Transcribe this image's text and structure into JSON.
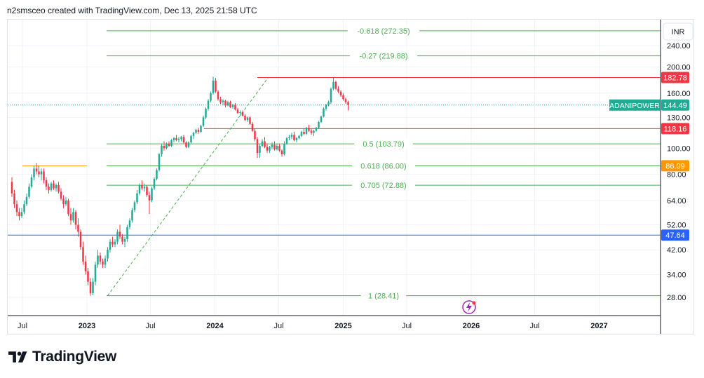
{
  "header": {
    "attribution": "n2smsceo created with TradingView.com, Dec 13, 2025 21:58 UTC"
  },
  "brand": {
    "name": "TradingView"
  },
  "colors": {
    "up": "#22ab94",
    "down": "#f23645",
    "fib": "#4caf50",
    "resistance": "#f23645",
    "support_line": "#2962ff",
    "old_high": "#ff9800",
    "text": "#131722",
    "axis": "#6a6d78"
  },
  "chart_data": {
    "type": "candlestick",
    "symbol": "ADANIPOWER",
    "currency": "INR",
    "scale": "log",
    "y_ticks": [
      240.0,
      200.0,
      160.0,
      130.0,
      100.0,
      80.0,
      64.0,
      52.0,
      42.0,
      34.0,
      28.0
    ],
    "x_ticks": [
      "Jul",
      "2023",
      "Jul",
      "2024",
      "Jul",
      "2025",
      "Jul",
      "2026",
      "Jul",
      "2027"
    ],
    "price_labels": [
      {
        "value": "182.78",
        "color": "#f23645"
      },
      {
        "value": "144.49",
        "color": "#22ab94",
        "name": "ADANIPOWER"
      },
      {
        "value": "118.16",
        "color": "#f23645"
      },
      {
        "value": "86.09",
        "color": "#ff9800"
      },
      {
        "value": "47.64",
        "color": "#2962ff"
      }
    ],
    "fib_levels": [
      {
        "label": "-0.618 (272.35)",
        "price": 272.35
      },
      {
        "label": "-0.27 (219.88)",
        "price": 219.88
      },
      {
        "label": "0.5 (103.79)",
        "price": 103.79
      },
      {
        "label": "0.618 (86.00)",
        "price": 86.0
      },
      {
        "label": "0.705 (72.88)",
        "price": 72.88
      },
      {
        "label": "1 (28.41)",
        "price": 28.41
      }
    ],
    "horizontal_lines": [
      {
        "price": 182.78,
        "color": "#f23645",
        "from": "2024-05",
        "to": "end"
      },
      {
        "price": 118.16,
        "color": "#f23645",
        "from": "2023-12",
        "to": "end"
      },
      {
        "price": 86.09,
        "color": "#ff9800",
        "from": "2022-07",
        "to": "2023-01"
      },
      {
        "price": 47.64,
        "color": "#2962ff",
        "from": "start",
        "to": "end"
      }
    ],
    "trend_line": {
      "from": {
        "date": "2023-03",
        "price": 28.41
      },
      "to": {
        "date": "2024-06",
        "price": 182.78
      }
    },
    "candles": [
      {
        "t": "2022-06-01",
        "o": 75,
        "h": 78,
        "l": 66,
        "c": 68
      },
      {
        "t": "2022-06-08",
        "o": 68,
        "h": 70,
        "l": 60,
        "c": 62
      },
      {
        "t": "2022-06-15",
        "o": 62,
        "h": 64,
        "l": 56,
        "c": 58
      },
      {
        "t": "2022-06-22",
        "o": 58,
        "h": 60,
        "l": 54,
        "c": 56
      },
      {
        "t": "2022-06-29",
        "o": 56,
        "h": 60,
        "l": 55,
        "c": 58
      },
      {
        "t": "2022-07-06",
        "o": 58,
        "h": 64,
        "l": 57,
        "c": 62
      },
      {
        "t": "2022-07-13",
        "o": 62,
        "h": 68,
        "l": 61,
        "c": 66
      },
      {
        "t": "2022-07-20",
        "o": 66,
        "h": 74,
        "l": 65,
        "c": 72
      },
      {
        "t": "2022-07-27",
        "o": 72,
        "h": 80,
        "l": 71,
        "c": 78
      },
      {
        "t": "2022-08-03",
        "o": 78,
        "h": 86,
        "l": 76,
        "c": 84
      },
      {
        "t": "2022-08-10",
        "o": 84,
        "h": 88,
        "l": 80,
        "c": 82
      },
      {
        "t": "2022-08-17",
        "o": 82,
        "h": 86,
        "l": 78,
        "c": 80
      },
      {
        "t": "2022-08-24",
        "o": 80,
        "h": 84,
        "l": 76,
        "c": 82
      },
      {
        "t": "2022-08-31",
        "o": 82,
        "h": 84,
        "l": 74,
        "c": 76
      },
      {
        "t": "2022-09-07",
        "o": 76,
        "h": 78,
        "l": 70,
        "c": 72
      },
      {
        "t": "2022-09-14",
        "o": 72,
        "h": 74,
        "l": 68,
        "c": 70
      },
      {
        "t": "2022-09-21",
        "o": 70,
        "h": 75,
        "l": 69,
        "c": 74
      },
      {
        "t": "2022-09-28",
        "o": 74,
        "h": 76,
        "l": 70,
        "c": 71
      },
      {
        "t": "2022-10-05",
        "o": 71,
        "h": 74,
        "l": 69,
        "c": 73
      },
      {
        "t": "2022-10-12",
        "o": 73,
        "h": 75,
        "l": 68,
        "c": 69
      },
      {
        "t": "2022-10-19",
        "o": 69,
        "h": 71,
        "l": 64,
        "c": 65
      },
      {
        "t": "2022-10-26",
        "o": 65,
        "h": 67,
        "l": 60,
        "c": 62
      },
      {
        "t": "2022-11-02",
        "o": 62,
        "h": 66,
        "l": 61,
        "c": 64
      },
      {
        "t": "2022-11-09",
        "o": 64,
        "h": 65,
        "l": 56,
        "c": 57
      },
      {
        "t": "2022-11-16",
        "o": 57,
        "h": 60,
        "l": 52,
        "c": 54
      },
      {
        "t": "2022-11-23",
        "o": 54,
        "h": 60,
        "l": 53,
        "c": 58
      },
      {
        "t": "2022-11-30",
        "o": 58,
        "h": 59,
        "l": 50,
        "c": 52
      },
      {
        "t": "2022-12-07",
        "o": 52,
        "h": 55,
        "l": 47,
        "c": 49
      },
      {
        "t": "2022-12-14",
        "o": 49,
        "h": 50,
        "l": 42,
        "c": 43
      },
      {
        "t": "2022-12-21",
        "o": 43,
        "h": 45,
        "l": 37,
        "c": 38
      },
      {
        "t": "2022-12-28",
        "o": 38,
        "h": 40,
        "l": 34,
        "c": 35
      },
      {
        "t": "2023-01-04",
        "o": 35,
        "h": 36,
        "l": 31,
        "c": 32
      },
      {
        "t": "2023-01-11",
        "o": 32,
        "h": 33,
        "l": 28.41,
        "c": 29
      },
      {
        "t": "2023-01-18",
        "o": 29,
        "h": 33,
        "l": 28.5,
        "c": 32
      },
      {
        "t": "2023-01-25",
        "o": 32,
        "h": 38,
        "l": 31,
        "c": 37
      },
      {
        "t": "2023-02-01",
        "o": 37,
        "h": 42,
        "l": 36,
        "c": 40
      },
      {
        "t": "2023-02-08",
        "o": 40,
        "h": 41,
        "l": 37,
        "c": 38
      },
      {
        "t": "2023-02-15",
        "o": 38,
        "h": 39,
        "l": 36,
        "c": 37
      },
      {
        "t": "2023-02-22",
        "o": 37,
        "h": 40,
        "l": 36,
        "c": 39
      },
      {
        "t": "2023-03-01",
        "o": 39,
        "h": 43,
        "l": 38,
        "c": 42
      },
      {
        "t": "2023-03-08",
        "o": 42,
        "h": 46,
        "l": 41,
        "c": 45
      },
      {
        "t": "2023-03-15",
        "o": 45,
        "h": 47,
        "l": 43,
        "c": 44
      },
      {
        "t": "2023-03-22",
        "o": 44,
        "h": 46,
        "l": 43,
        "c": 45
      },
      {
        "t": "2023-03-29",
        "o": 45,
        "h": 50,
        "l": 44,
        "c": 49
      },
      {
        "t": "2023-04-05",
        "o": 49,
        "h": 52,
        "l": 46,
        "c": 47
      },
      {
        "t": "2023-04-12",
        "o": 47,
        "h": 48,
        "l": 44,
        "c": 45
      },
      {
        "t": "2023-04-19",
        "o": 45,
        "h": 47,
        "l": 43,
        "c": 46
      },
      {
        "t": "2023-04-26",
        "o": 46,
        "h": 52,
        "l": 45,
        "c": 51
      },
      {
        "t": "2023-05-03",
        "o": 51,
        "h": 55,
        "l": 50,
        "c": 54
      },
      {
        "t": "2023-05-10",
        "o": 54,
        "h": 60,
        "l": 53,
        "c": 59
      },
      {
        "t": "2023-05-17",
        "o": 59,
        "h": 64,
        "l": 58,
        "c": 63
      },
      {
        "t": "2023-05-24",
        "o": 63,
        "h": 70,
        "l": 62,
        "c": 68
      },
      {
        "t": "2023-05-31",
        "o": 68,
        "h": 74,
        "l": 67,
        "c": 73
      },
      {
        "t": "2023-06-07",
        "o": 73,
        "h": 76,
        "l": 70,
        "c": 71
      },
      {
        "t": "2023-06-14",
        "o": 71,
        "h": 74,
        "l": 69,
        "c": 72
      },
      {
        "t": "2023-06-21",
        "o": 72,
        "h": 73,
        "l": 66,
        "c": 67
      },
      {
        "t": "2023-06-28",
        "o": 67,
        "h": 69,
        "l": 57,
        "c": 64
      },
      {
        "t": "2023-07-05",
        "o": 64,
        "h": 72,
        "l": 63,
        "c": 71
      },
      {
        "t": "2023-07-12",
        "o": 71,
        "h": 78,
        "l": 70,
        "c": 77
      },
      {
        "t": "2023-07-19",
        "o": 77,
        "h": 84,
        "l": 76,
        "c": 83
      },
      {
        "t": "2023-07-26",
        "o": 83,
        "h": 96,
        "l": 82,
        "c": 95
      },
      {
        "t": "2023-08-02",
        "o": 95,
        "h": 104,
        "l": 93,
        "c": 102
      },
      {
        "t": "2023-08-09",
        "o": 102,
        "h": 106,
        "l": 98,
        "c": 100
      },
      {
        "t": "2023-08-16",
        "o": 100,
        "h": 105,
        "l": 99,
        "c": 104
      },
      {
        "t": "2023-08-23",
        "o": 104,
        "h": 106,
        "l": 101,
        "c": 102
      },
      {
        "t": "2023-08-30",
        "o": 102,
        "h": 108,
        "l": 101,
        "c": 107
      },
      {
        "t": "2023-09-06",
        "o": 107,
        "h": 110,
        "l": 105,
        "c": 109
      },
      {
        "t": "2023-09-13",
        "o": 109,
        "h": 112,
        "l": 106,
        "c": 107
      },
      {
        "t": "2023-09-20",
        "o": 107,
        "h": 110,
        "l": 105,
        "c": 108
      },
      {
        "t": "2023-09-27",
        "o": 108,
        "h": 111,
        "l": 106,
        "c": 110
      },
      {
        "t": "2023-10-04",
        "o": 110,
        "h": 112,
        "l": 104,
        "c": 105
      },
      {
        "t": "2023-10-11",
        "o": 105,
        "h": 106,
        "l": 100,
        "c": 101
      },
      {
        "t": "2023-10-18",
        "o": 101,
        "h": 106,
        "l": 100,
        "c": 105
      },
      {
        "t": "2023-10-25",
        "o": 105,
        "h": 112,
        "l": 104,
        "c": 111
      },
      {
        "t": "2023-11-01",
        "o": 111,
        "h": 115,
        "l": 108,
        "c": 114
      },
      {
        "t": "2023-11-08",
        "o": 114,
        "h": 118,
        "l": 113,
        "c": 117
      },
      {
        "t": "2023-11-15",
        "o": 117,
        "h": 119,
        "l": 113,
        "c": 115
      },
      {
        "t": "2023-11-22",
        "o": 115,
        "h": 122,
        "l": 114,
        "c": 121
      },
      {
        "t": "2023-11-29",
        "o": 121,
        "h": 132,
        "l": 120,
        "c": 130
      },
      {
        "t": "2023-12-06",
        "o": 130,
        "h": 142,
        "l": 128,
        "c": 140
      },
      {
        "t": "2023-12-13",
        "o": 140,
        "h": 152,
        "l": 138,
        "c": 150
      },
      {
        "t": "2023-12-20",
        "o": 150,
        "h": 162,
        "l": 148,
        "c": 160
      },
      {
        "t": "2023-12-27",
        "o": 160,
        "h": 184,
        "l": 158,
        "c": 178
      },
      {
        "t": "2024-01-03",
        "o": 178,
        "h": 182,
        "l": 160,
        "c": 162
      },
      {
        "t": "2024-01-10",
        "o": 162,
        "h": 164,
        "l": 150,
        "c": 152
      },
      {
        "t": "2024-01-17",
        "o": 152,
        "h": 155,
        "l": 146,
        "c": 148
      },
      {
        "t": "2024-01-24",
        "o": 148,
        "h": 152,
        "l": 144,
        "c": 150
      },
      {
        "t": "2024-01-31",
        "o": 150,
        "h": 151,
        "l": 142,
        "c": 144
      },
      {
        "t": "2024-02-07",
        "o": 144,
        "h": 150,
        "l": 143,
        "c": 148
      },
      {
        "t": "2024-02-14",
        "o": 148,
        "h": 150,
        "l": 141,
        "c": 142
      },
      {
        "t": "2024-02-21",
        "o": 142,
        "h": 146,
        "l": 140,
        "c": 145
      },
      {
        "t": "2024-02-28",
        "o": 145,
        "h": 147,
        "l": 138,
        "c": 139
      },
      {
        "t": "2024-03-06",
        "o": 139,
        "h": 141,
        "l": 134,
        "c": 135
      },
      {
        "t": "2024-03-13",
        "o": 135,
        "h": 138,
        "l": 132,
        "c": 136
      },
      {
        "t": "2024-03-20",
        "o": 136,
        "h": 138,
        "l": 131,
        "c": 132
      },
      {
        "t": "2024-03-27",
        "o": 132,
        "h": 134,
        "l": 126,
        "c": 127
      },
      {
        "t": "2024-04-03",
        "o": 127,
        "h": 131,
        "l": 125,
        "c": 130
      },
      {
        "t": "2024-04-10",
        "o": 130,
        "h": 131,
        "l": 122,
        "c": 123
      },
      {
        "t": "2024-04-17",
        "o": 123,
        "h": 125,
        "l": 115,
        "c": 116
      },
      {
        "t": "2024-04-24",
        "o": 116,
        "h": 118,
        "l": 106,
        "c": 108
      },
      {
        "t": "2024-05-01",
        "o": 108,
        "h": 110,
        "l": 92,
        "c": 96
      },
      {
        "t": "2024-05-08",
        "o": 96,
        "h": 104,
        "l": 92,
        "c": 102
      },
      {
        "t": "2024-05-15",
        "o": 102,
        "h": 108,
        "l": 101,
        "c": 106
      },
      {
        "t": "2024-05-22",
        "o": 106,
        "h": 110,
        "l": 100,
        "c": 101
      },
      {
        "t": "2024-05-29",
        "o": 101,
        "h": 104,
        "l": 96,
        "c": 98
      },
      {
        "t": "2024-06-05",
        "o": 98,
        "h": 102,
        "l": 96,
        "c": 101
      },
      {
        "t": "2024-06-12",
        "o": 101,
        "h": 105,
        "l": 99,
        "c": 103
      },
      {
        "t": "2024-06-19",
        "o": 103,
        "h": 106,
        "l": 98,
        "c": 99
      },
      {
        "t": "2024-06-26",
        "o": 99,
        "h": 104,
        "l": 98,
        "c": 102
      },
      {
        "t": "2024-07-03",
        "o": 102,
        "h": 104,
        "l": 97,
        "c": 98
      },
      {
        "t": "2024-07-10",
        "o": 98,
        "h": 99,
        "l": 93,
        "c": 95
      },
      {
        "t": "2024-07-17",
        "o": 95,
        "h": 106,
        "l": 94,
        "c": 104
      },
      {
        "t": "2024-07-24",
        "o": 104,
        "h": 110,
        "l": 103,
        "c": 109
      },
      {
        "t": "2024-07-31",
        "o": 109,
        "h": 112,
        "l": 107,
        "c": 110
      },
      {
        "t": "2024-08-07",
        "o": 110,
        "h": 114,
        "l": 108,
        "c": 112
      },
      {
        "t": "2024-08-14",
        "o": 112,
        "h": 115,
        "l": 106,
        "c": 107
      },
      {
        "t": "2024-08-21",
        "o": 107,
        "h": 110,
        "l": 105,
        "c": 109
      },
      {
        "t": "2024-08-28",
        "o": 109,
        "h": 112,
        "l": 108,
        "c": 111
      },
      {
        "t": "2024-09-04",
        "o": 111,
        "h": 116,
        "l": 110,
        "c": 115
      },
      {
        "t": "2024-09-11",
        "o": 115,
        "h": 118,
        "l": 112,
        "c": 113
      },
      {
        "t": "2024-09-18",
        "o": 113,
        "h": 120,
        "l": 112,
        "c": 119
      },
      {
        "t": "2024-09-25",
        "o": 119,
        "h": 122,
        "l": 115,
        "c": 116
      },
      {
        "t": "2024-10-02",
        "o": 116,
        "h": 118,
        "l": 112,
        "c": 114
      },
      {
        "t": "2024-10-09",
        "o": 114,
        "h": 117,
        "l": 111,
        "c": 116
      },
      {
        "t": "2024-10-16",
        "o": 116,
        "h": 120,
        "l": 115,
        "c": 119
      },
      {
        "t": "2024-10-23",
        "o": 119,
        "h": 126,
        "l": 118,
        "c": 125
      },
      {
        "t": "2024-10-30",
        "o": 125,
        "h": 132,
        "l": 124,
        "c": 131
      },
      {
        "t": "2024-11-06",
        "o": 131,
        "h": 142,
        "l": 130,
        "c": 140
      },
      {
        "t": "2024-11-13",
        "o": 140,
        "h": 146,
        "l": 138,
        "c": 145
      },
      {
        "t": "2024-11-20",
        "o": 145,
        "h": 150,
        "l": 143,
        "c": 148
      },
      {
        "t": "2024-11-27",
        "o": 148,
        "h": 168,
        "l": 146,
        "c": 166
      },
      {
        "t": "2024-12-04",
        "o": 166,
        "h": 182.78,
        "l": 164,
        "c": 176
      },
      {
        "t": "2024-12-11",
        "o": 176,
        "h": 178,
        "l": 164,
        "c": 166
      },
      {
        "t": "2024-12-18",
        "o": 166,
        "h": 170,
        "l": 160,
        "c": 162
      },
      {
        "t": "2024-12-25",
        "o": 162,
        "h": 164,
        "l": 155,
        "c": 157
      },
      {
        "t": "2025-01-01",
        "o": 157,
        "h": 160,
        "l": 150,
        "c": 152
      },
      {
        "t": "2025-01-08",
        "o": 152,
        "h": 154,
        "l": 146,
        "c": 148
      },
      {
        "t": "2025-01-15",
        "o": 148,
        "h": 150,
        "l": 138,
        "c": 144.49
      }
    ]
  }
}
